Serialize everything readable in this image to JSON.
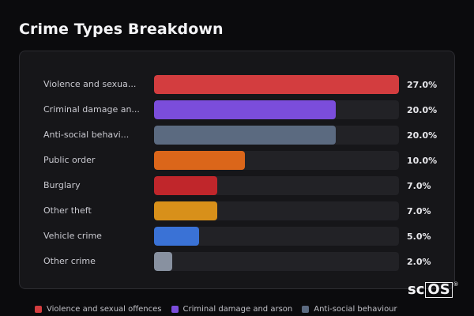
{
  "title": "Crime Types Breakdown",
  "chart_data": {
    "type": "bar",
    "orientation": "horizontal",
    "title": "Crime Types Breakdown",
    "xlim": [
      0,
      27
    ],
    "categories": [
      "Violence and sexua...",
      "Criminal damage an...",
      "Anti-social behavi...",
      "Public order",
      "Burglary",
      "Other theft",
      "Vehicle crime",
      "Other crime"
    ],
    "values": [
      27.0,
      20.0,
      20.0,
      10.0,
      7.0,
      7.0,
      5.0,
      2.0
    ],
    "value_labels": [
      "27.0%",
      "20.0%",
      "20.0%",
      "10.0%",
      "7.0%",
      "7.0%",
      "5.0%",
      "2.0%"
    ],
    "colors": [
      "#d33d3f",
      "#7b4ddb",
      "#5b6a80",
      "#db661a",
      "#c0262b",
      "#d8901a",
      "#3a72d6",
      "#8891a0"
    ],
    "legend": [
      {
        "label": "Violence and sexual offences",
        "color": "#d33d3f"
      },
      {
        "label": "Criminal damage and arson",
        "color": "#7b4ddb"
      },
      {
        "label": "Anti-social behaviour",
        "color": "#5b6a80"
      }
    ],
    "legend_placement": "bottom"
  },
  "logo": {
    "part1": "sc",
    "part2": "OS",
    "mark": "®"
  }
}
